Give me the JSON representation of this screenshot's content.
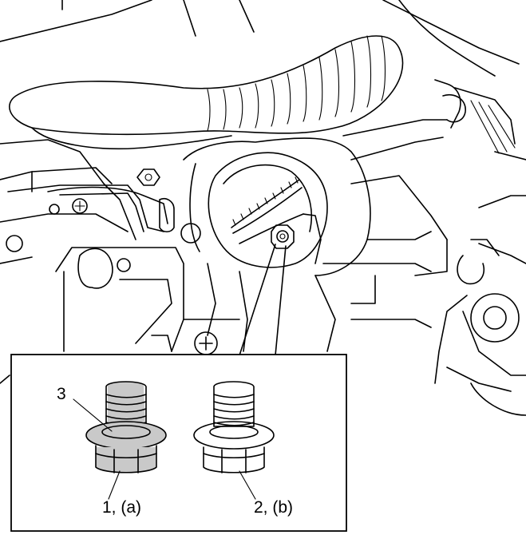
{
  "callouts": {
    "item_3": "3",
    "item_1": "1, (a)",
    "item_2": "2, (b)"
  },
  "colors": {
    "line": "#000000",
    "background": "#ffffff",
    "highlight_shading": "#c9c9c9"
  }
}
